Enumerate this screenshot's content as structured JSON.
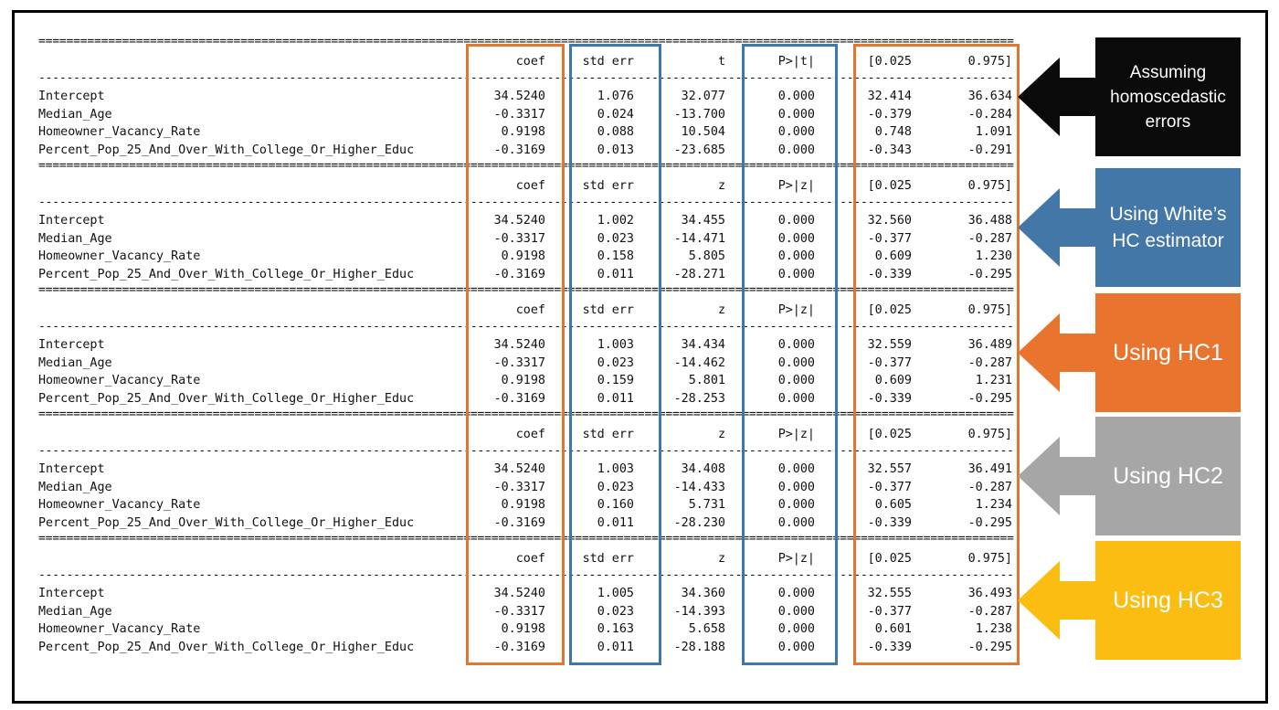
{
  "separator_double": "====================================================================================================================================================================",
  "separator_single": "--------------------------------------------------------------------------------------------------------------------------------------------------------------------",
  "sections": [
    {
      "label": "Assuming\nhomoscedastic\nerrors",
      "panel_color": "#0a0a0a",
      "headers": {
        "coef": "coef",
        "std_err": "std err",
        "stat": "t",
        "p": "P>|t|",
        "ci_low": "[0.025",
        "ci_high": "0.975]"
      },
      "rows": [
        {
          "name": "Intercept",
          "coef": "34.5240",
          "std_err": "1.076",
          "stat": "32.077",
          "p": "0.000",
          "ci_low": "32.414",
          "ci_high": "36.634"
        },
        {
          "name": "Median_Age",
          "coef": "-0.3317",
          "std_err": "0.024",
          "stat": "-13.700",
          "p": "0.000",
          "ci_low": "-0.379",
          "ci_high": "-0.284"
        },
        {
          "name": "Homeowner_Vacancy_Rate",
          "coef": "0.9198",
          "std_err": "0.088",
          "stat": "10.504",
          "p": "0.000",
          "ci_low": "0.748",
          "ci_high": "1.091"
        },
        {
          "name": "Percent_Pop_25_And_Over_With_College_Or_Higher_Educ",
          "coef": "-0.3169",
          "std_err": "0.013",
          "stat": "-23.685",
          "p": "0.000",
          "ci_low": "-0.343",
          "ci_high": "-0.291"
        }
      ]
    },
    {
      "label": "Using White’s\nHC estimator",
      "panel_color": "#4277a8",
      "headers": {
        "coef": "coef",
        "std_err": "std err",
        "stat": "z",
        "p": "P>|z|",
        "ci_low": "[0.025",
        "ci_high": "0.975]"
      },
      "rows": [
        {
          "name": "Intercept",
          "coef": "34.5240",
          "std_err": "1.002",
          "stat": "34.455",
          "p": "0.000",
          "ci_low": "32.560",
          "ci_high": "36.488"
        },
        {
          "name": "Median_Age",
          "coef": "-0.3317",
          "std_err": "0.023",
          "stat": "-14.471",
          "p": "0.000",
          "ci_low": "-0.377",
          "ci_high": "-0.287"
        },
        {
          "name": "Homeowner_Vacancy_Rate",
          "coef": "0.9198",
          "std_err": "0.158",
          "stat": "5.805",
          "p": "0.000",
          "ci_low": "0.609",
          "ci_high": "1.230"
        },
        {
          "name": "Percent_Pop_25_And_Over_With_College_Or_Higher_Educ",
          "coef": "-0.3169",
          "std_err": "0.011",
          "stat": "-28.271",
          "p": "0.000",
          "ci_low": "-0.339",
          "ci_high": "-0.295"
        }
      ]
    },
    {
      "label": "Using HC1",
      "panel_color": "#e8742d",
      "headers": {
        "coef": "coef",
        "std_err": "std err",
        "stat": "z",
        "p": "P>|z|",
        "ci_low": "[0.025",
        "ci_high": "0.975]"
      },
      "rows": [
        {
          "name": "Intercept",
          "coef": "34.5240",
          "std_err": "1.003",
          "stat": "34.434",
          "p": "0.000",
          "ci_low": "32.559",
          "ci_high": "36.489"
        },
        {
          "name": "Median_Age",
          "coef": "-0.3317",
          "std_err": "0.023",
          "stat": "-14.462",
          "p": "0.000",
          "ci_low": "-0.377",
          "ci_high": "-0.287"
        },
        {
          "name": "Homeowner_Vacancy_Rate",
          "coef": "0.9198",
          "std_err": "0.159",
          "stat": "5.801",
          "p": "0.000",
          "ci_low": "0.609",
          "ci_high": "1.231"
        },
        {
          "name": "Percent_Pop_25_And_Over_With_College_Or_Higher_Educ",
          "coef": "-0.3169",
          "std_err": "0.011",
          "stat": "-28.253",
          "p": "0.000",
          "ci_low": "-0.339",
          "ci_high": "-0.295"
        }
      ]
    },
    {
      "label": "Using HC2",
      "panel_color": "#a6a6a6",
      "headers": {
        "coef": "coef",
        "std_err": "std err",
        "stat": "z",
        "p": "P>|z|",
        "ci_low": "[0.025",
        "ci_high": "0.975]"
      },
      "rows": [
        {
          "name": "Intercept",
          "coef": "34.5240",
          "std_err": "1.003",
          "stat": "34.408",
          "p": "0.000",
          "ci_low": "32.557",
          "ci_high": "36.491"
        },
        {
          "name": "Median_Age",
          "coef": "-0.3317",
          "std_err": "0.023",
          "stat": "-14.433",
          "p": "0.000",
          "ci_low": "-0.377",
          "ci_high": "-0.287"
        },
        {
          "name": "Homeowner_Vacancy_Rate",
          "coef": "0.9198",
          "std_err": "0.160",
          "stat": "5.731",
          "p": "0.000",
          "ci_low": "0.605",
          "ci_high": "1.234"
        },
        {
          "name": "Percent_Pop_25_And_Over_With_College_Or_Higher_Educ",
          "coef": "-0.3169",
          "std_err": "0.011",
          "stat": "-28.230",
          "p": "0.000",
          "ci_low": "-0.339",
          "ci_high": "-0.295"
        }
      ]
    },
    {
      "label": "Using HC3",
      "panel_color": "#fbbd11",
      "headers": {
        "coef": "coef",
        "std_err": "std err",
        "stat": "z",
        "p": "P>|z|",
        "ci_low": "[0.025",
        "ci_high": "0.975]"
      },
      "rows": [
        {
          "name": "Intercept",
          "coef": "34.5240",
          "std_err": "1.005",
          "stat": "34.360",
          "p": "0.000",
          "ci_low": "32.555",
          "ci_high": "36.493"
        },
        {
          "name": "Median_Age",
          "coef": "-0.3317",
          "std_err": "0.023",
          "stat": "-14.393",
          "p": "0.000",
          "ci_low": "-0.377",
          "ci_high": "-0.287"
        },
        {
          "name": "Homeowner_Vacancy_Rate",
          "coef": "0.9198",
          "std_err": "0.163",
          "stat": "5.658",
          "p": "0.000",
          "ci_low": "0.601",
          "ci_high": "1.238"
        },
        {
          "name": "Percent_Pop_25_And_Over_With_College_Or_Higher_Educ",
          "coef": "-0.3169",
          "std_err": "0.011",
          "stat": "-28.188",
          "p": "0.000",
          "ci_low": "-0.339",
          "ci_high": "-0.295"
        }
      ]
    }
  ],
  "colors": {
    "orange_outline": "#e2762e",
    "blue_outline": "#3b79ad",
    "arrow_black": "#0a0a0a",
    "arrow_blue": "#4277a8",
    "arrow_orange": "#e8742d",
    "arrow_gray": "#a6a6a6",
    "arrow_yellow": "#fbbd11"
  }
}
